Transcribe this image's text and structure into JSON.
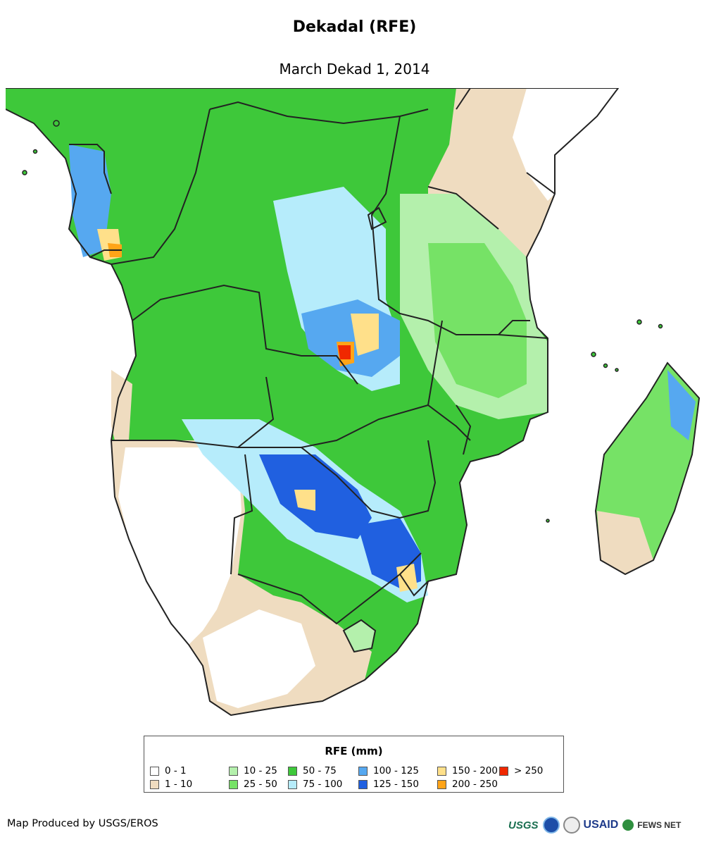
{
  "header": {
    "title": "Dekadal (RFE)",
    "subtitle": "March Dekad 1, 2014"
  },
  "map": {
    "land_base_color": "#ffffff",
    "border_color": "#222222"
  },
  "legend": {
    "title": "RFE (mm)",
    "items": [
      {
        "label": "0 - 1",
        "color": "#ffffff"
      },
      {
        "label": "1 - 10",
        "color": "#efdcc0"
      },
      {
        "label": "10 - 25",
        "color": "#b4f0ac"
      },
      {
        "label": "25 - 50",
        "color": "#76e266"
      },
      {
        "label": "50 - 75",
        "color": "#3ec83a"
      },
      {
        "label": "75 - 100",
        "color": "#b6ecfb"
      },
      {
        "label": "100 - 125",
        "color": "#56a8f0"
      },
      {
        "label": "125 - 150",
        "color": "#2060e0"
      },
      {
        "label": "150 - 200",
        "color": "#ffe08a"
      },
      {
        "label": "200 - 250",
        "color": "#ffa418"
      },
      {
        "label": "> 250",
        "color": "#f02800"
      }
    ]
  },
  "footer": {
    "credit": "Map Produced by USGS/EROS",
    "logos": [
      {
        "icon": "usgs-logo",
        "text": "USGS"
      },
      {
        "icon": "noaa-logo",
        "text": ""
      },
      {
        "icon": "state-seal-logo",
        "text": ""
      },
      {
        "icon": "usaid-logo",
        "text": "USAID"
      },
      {
        "icon": "fews-net-logo",
        "text": "FEWS NET"
      }
    ]
  }
}
